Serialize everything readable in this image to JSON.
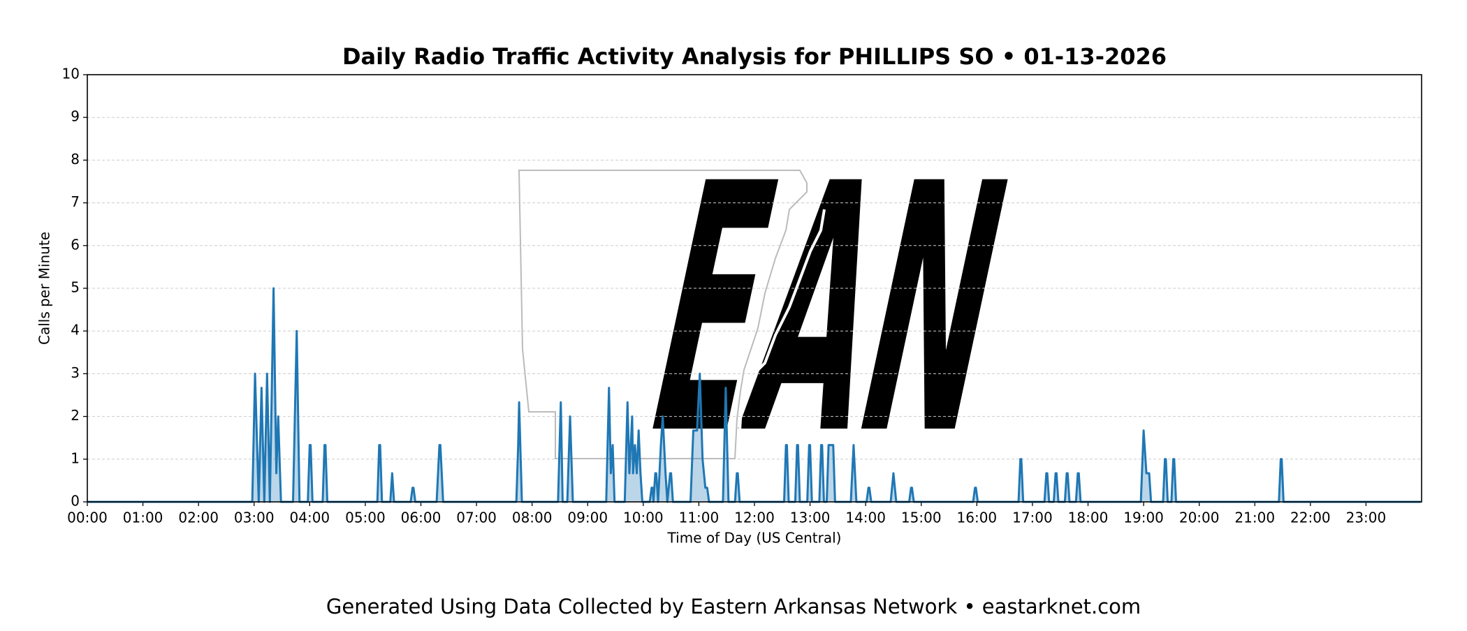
{
  "chart_data": {
    "type": "line",
    "title": "Daily Radio Traffic Activity Analysis for PHILLIPS SO • 01-13-2026",
    "x_label": "Time of Day (US Central)",
    "y_label": "Calls per Minute",
    "watermark": "EAN",
    "footer": "Generated Using Data Collected by Eastern Arkansas Network • eastarknet.com",
    "color": "#1f77b4",
    "grid": true,
    "xlim": [
      0,
      1440
    ],
    "ylim": [
      0,
      10
    ],
    "yticks": [
      0,
      1,
      2,
      3,
      4,
      5,
      6,
      7,
      8,
      9,
      10
    ],
    "xticks": [
      {
        "value": 0,
        "label": "00:00"
      },
      {
        "value": 60,
        "label": "01:00"
      },
      {
        "value": 120,
        "label": "02:00"
      },
      {
        "value": 180,
        "label": "03:00"
      },
      {
        "value": 240,
        "label": "04:00"
      },
      {
        "value": 300,
        "label": "05:00"
      },
      {
        "value": 360,
        "label": "06:00"
      },
      {
        "value": 420,
        "label": "07:00"
      },
      {
        "value": 480,
        "label": "08:00"
      },
      {
        "value": 540,
        "label": "09:00"
      },
      {
        "value": 600,
        "label": "10:00"
      },
      {
        "value": 660,
        "label": "11:00"
      },
      {
        "value": 720,
        "label": "12:00"
      },
      {
        "value": 780,
        "label": "13:00"
      },
      {
        "value": 840,
        "label": "14:00"
      },
      {
        "value": 900,
        "label": "15:00"
      },
      {
        "value": 960,
        "label": "16:00"
      },
      {
        "value": 1020,
        "label": "17:00"
      },
      {
        "value": 1080,
        "label": "18:00"
      },
      {
        "value": 1140,
        "label": "19:00"
      },
      {
        "value": 1200,
        "label": "20:00"
      },
      {
        "value": 1260,
        "label": "21:00"
      },
      {
        "value": 1320,
        "label": "22:00"
      },
      {
        "value": 1380,
        "label": "23:00"
      }
    ],
    "x": [
      0,
      178,
      181,
      185,
      188,
      191,
      194,
      197,
      201,
      204,
      206,
      209,
      222,
      226,
      229,
      238,
      240,
      241,
      243,
      254,
      256,
      257,
      259,
      313,
      315,
      316,
      318,
      327,
      329,
      331,
      349,
      351,
      352,
      354,
      377,
      380,
      381,
      384,
      463,
      465,
      466,
      469,
      508,
      511,
      513,
      518,
      521,
      524,
      560,
      563,
      565,
      567,
      569,
      580,
      583,
      585,
      588,
      589,
      591,
      593,
      595,
      597,
      599,
      607,
      609,
      610,
      611,
      613,
      614,
      616,
      619,
      621,
      624,
      626,
      629,
      630,
      632,
      651,
      654,
      658,
      661,
      664,
      667,
      669,
      671,
      686,
      689,
      692,
      699,
      701,
      702,
      704,
      752,
      754,
      755,
      757,
      764,
      766,
      767,
      769,
      777,
      779,
      780,
      782,
      790,
      792,
      793,
      795,
      798,
      800,
      805,
      807,
      824,
      827,
      830,
      841,
      843,
      844,
      846,
      867,
      870,
      873,
      887,
      889,
      890,
      892,
      956,
      958,
      959,
      961,
      1005,
      1007,
      1008,
      1010,
      1033,
      1035,
      1036,
      1038,
      1043,
      1045,
      1046,
      1048,
      1055,
      1057,
      1058,
      1060,
      1067,
      1069,
      1070,
      1072,
      1137,
      1140,
      1143,
      1146,
      1148,
      1161,
      1163,
      1164,
      1166,
      1170,
      1172,
      1173,
      1175,
      1286,
      1288,
      1289,
      1291,
      1439
    ],
    "values": [
      0,
      0,
      3,
      0,
      2.67,
      0,
      3,
      0,
      5,
      0.67,
      2,
      0,
      0,
      4,
      0,
      0,
      1.33,
      1.33,
      0,
      0,
      1.33,
      1.33,
      0,
      0,
      1.33,
      1.33,
      0,
      0,
      0.67,
      0,
      0,
      0.33,
      0.33,
      0,
      0,
      1.33,
      1.33,
      0,
      0,
      1.33,
      2.33,
      0,
      0,
      2.33,
      0,
      0,
      2,
      0,
      0,
      2.67,
      0.67,
      1.33,
      0,
      0,
      2.33,
      0.67,
      2,
      0.67,
      1.33,
      0.67,
      1.67,
      0.67,
      0,
      0,
      0.33,
      0.33,
      0,
      0.67,
      0.67,
      0,
      1.33,
      2,
      0.67,
      0,
      0.67,
      0.67,
      0,
      0,
      1.67,
      1.67,
      3,
      1,
      0.33,
      0.33,
      0,
      0,
      2.67,
      0,
      0,
      0.67,
      0.67,
      0,
      0,
      1.33,
      1.33,
      0,
      0,
      1.33,
      1.33,
      0,
      0,
      1.33,
      1.33,
      0,
      0,
      1.33,
      1.33,
      0,
      0,
      1.33,
      1.33,
      0,
      0,
      1.33,
      0,
      0,
      0.33,
      0.33,
      0,
      0,
      0.67,
      0,
      0,
      0.33,
      0.33,
      0,
      0,
      0.33,
      0.33,
      0,
      0,
      1,
      1,
      0,
      0,
      0.67,
      0.67,
      0,
      0,
      0.67,
      0.67,
      0,
      0,
      0.67,
      0.67,
      0,
      0,
      0.67,
      0.67,
      0,
      0,
      1.67,
      0.67,
      0.67,
      0,
      0,
      1,
      1,
      0,
      0,
      1,
      1,
      0,
      0,
      1,
      1,
      0,
      0
    ]
  }
}
